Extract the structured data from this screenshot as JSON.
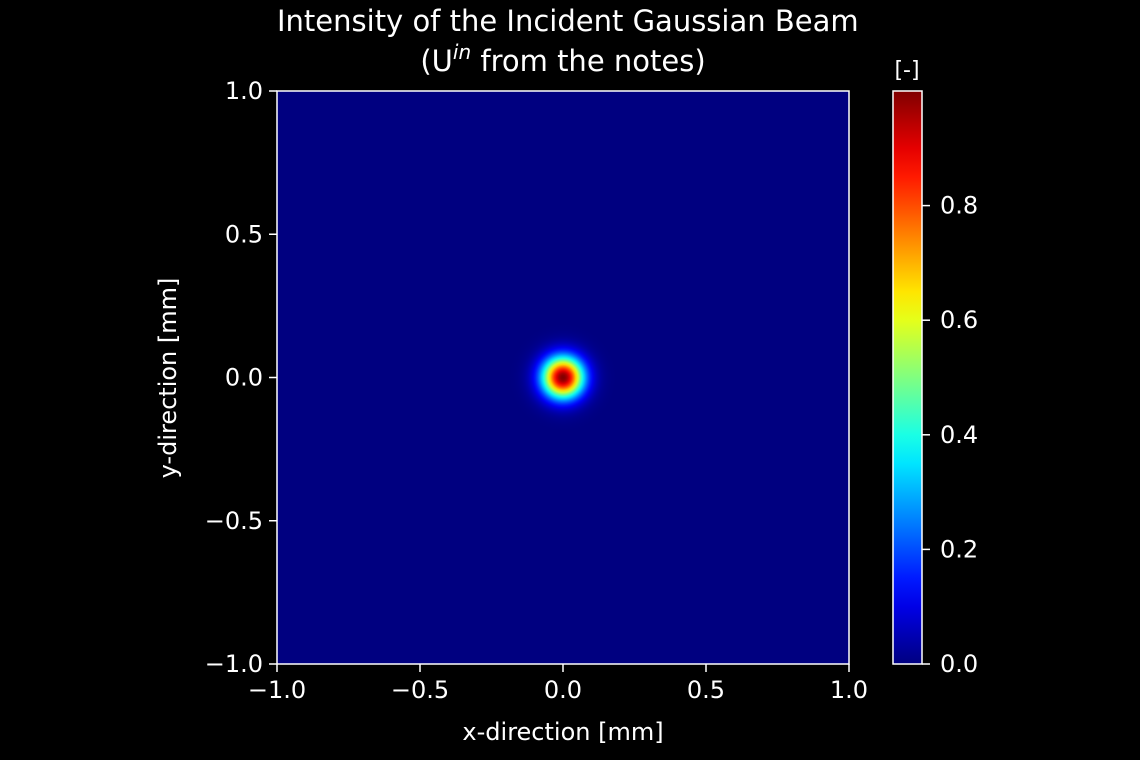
{
  "chart_data": {
    "type": "heatmap",
    "title_line1": "Intensity of the Incident Gaussian Beam",
    "title_line2_prefix": "(U",
    "title_line2_superscript": "in",
    "title_line2_suffix": " from the notes)",
    "xlabel": "x-direction [mm]",
    "ylabel": "y-direction [mm]",
    "xlim": [
      -1.0,
      1.0
    ],
    "ylim": [
      -1.0,
      1.0
    ],
    "xticks": [
      -1.0,
      -0.5,
      0.0,
      0.5,
      1.0
    ],
    "yticks": [
      -1.0,
      -0.5,
      0.0,
      0.5,
      1.0
    ],
    "xtick_labels": [
      "−1.0",
      "−0.5",
      "0.0",
      "0.5",
      "1.0"
    ],
    "ytick_labels": [
      "−1.0",
      "−0.5",
      "0.0",
      "0.5",
      "1.0"
    ],
    "colormap": "jet",
    "colorbar": {
      "label": "[-]",
      "range": [
        0.0,
        1.0
      ],
      "ticks": [
        0.0,
        0.2,
        0.4,
        0.6,
        0.8
      ],
      "tick_labels": [
        "0.0",
        "0.2",
        "0.4",
        "0.6",
        "0.8"
      ]
    },
    "beam": {
      "center_x_mm": 0.0,
      "center_y_mm": 0.0,
      "peak_intensity": 1.0,
      "waist_radius_1_over_e2_mm": 0.1
    }
  },
  "colors": {
    "background": "#000000",
    "text": "#ffffff",
    "axes_edge": "#ffffff",
    "colormap_low": "#00007f",
    "colormap_high": "#7f0000"
  }
}
